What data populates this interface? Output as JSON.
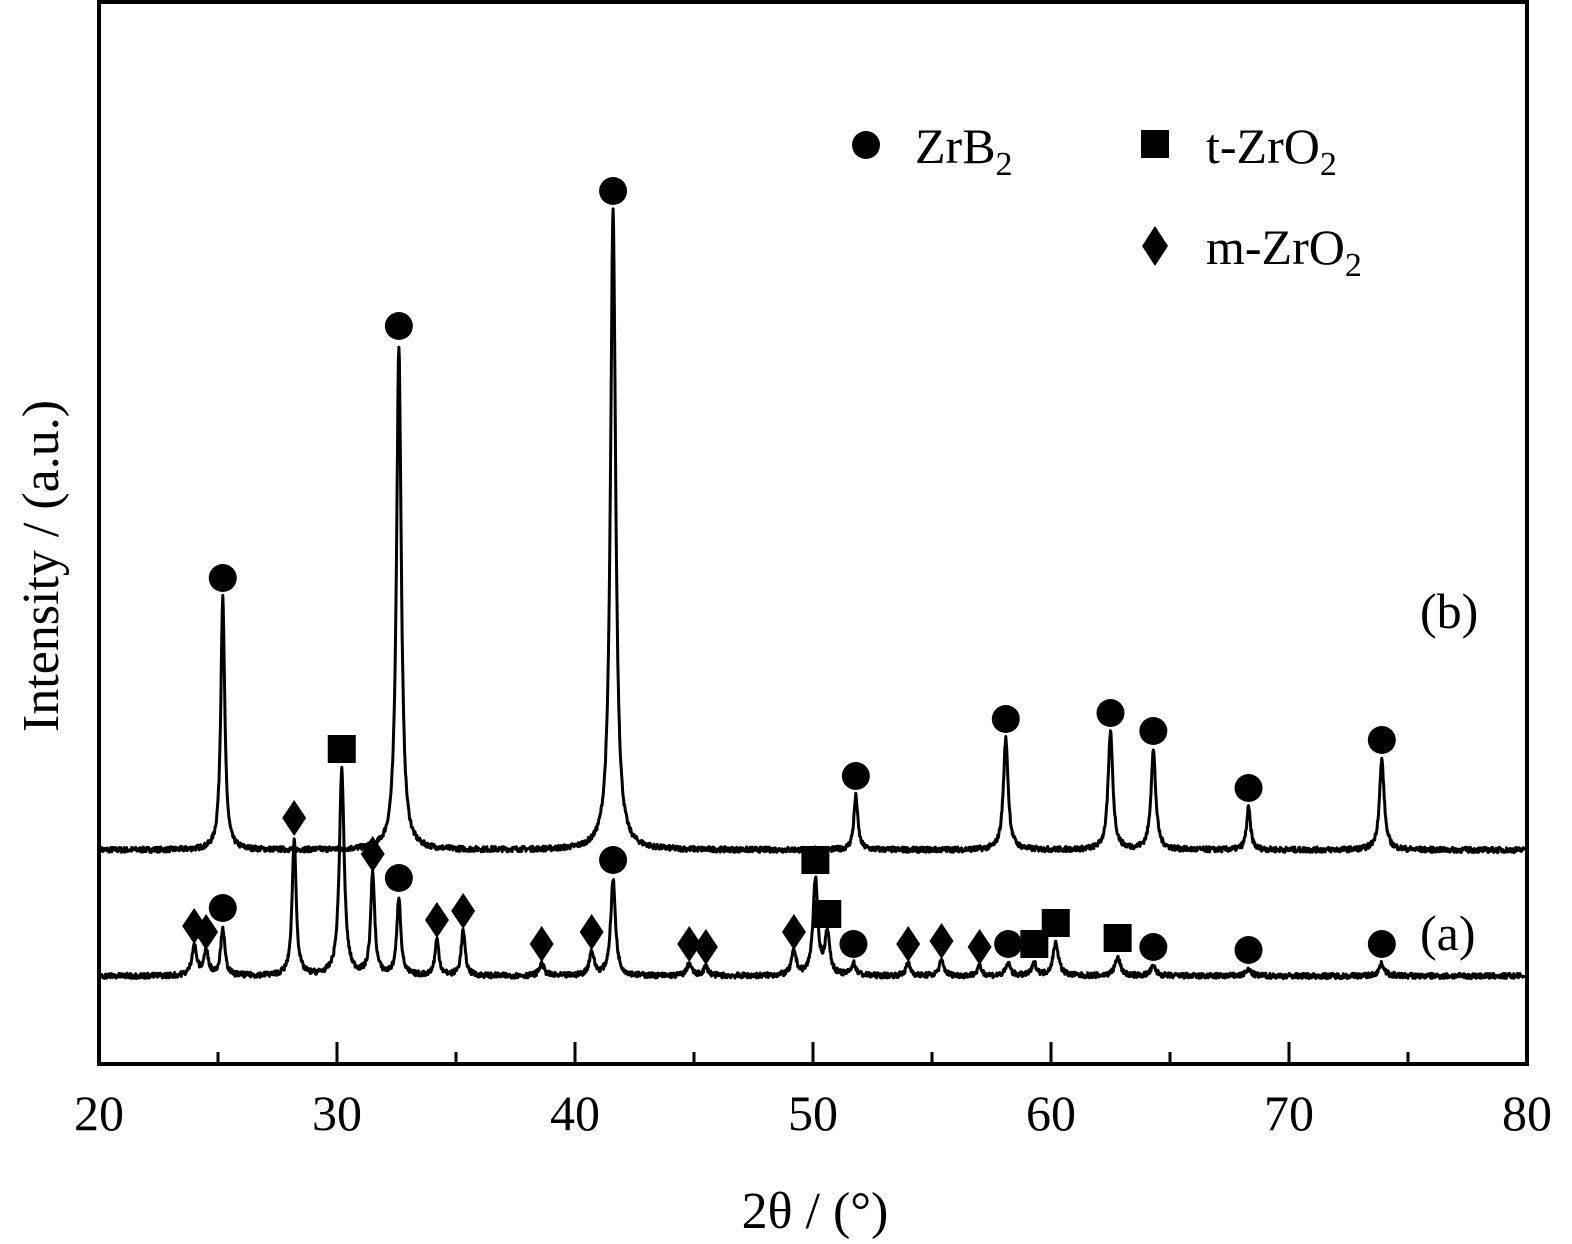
{
  "chart_data": {
    "type": "line",
    "xlabel": "2θ / (°)",
    "ylabel": "Intensity / (a.u.)",
    "xlim": [
      20,
      80
    ],
    "x_ticks": [
      20,
      30,
      40,
      50,
      60,
      70,
      80
    ],
    "x_tick_labels": [
      "20",
      "30",
      "40",
      "50",
      "60",
      "70",
      "80"
    ],
    "y_ticks_shown": false,
    "grid": false,
    "legend": {
      "placement": "top-right",
      "entries": [
        {
          "marker": "circle",
          "text": "ZrB",
          "sub": "2"
        },
        {
          "marker": "square",
          "text": "t-ZrO",
          "sub": "2"
        },
        {
          "marker": "diamond",
          "text": "m-ZrO",
          "sub": "2"
        }
      ]
    },
    "series": [
      {
        "name": "(b)",
        "baseline": 0.42,
        "color": "#000000",
        "peaks": [
          {
            "x": 25.2,
            "h": 0.84,
            "w": 0.1,
            "phase": "ZrB2"
          },
          {
            "x": 32.6,
            "h": 1.68,
            "w": 0.12,
            "phase": "ZrB2"
          },
          {
            "x": 41.6,
            "h": 2.13,
            "w": 0.13,
            "phase": "ZrB2"
          },
          {
            "x": 51.8,
            "h": 0.18,
            "w": 0.1,
            "phase": "ZrB2"
          },
          {
            "x": 58.1,
            "h": 0.37,
            "w": 0.12,
            "phase": "ZrB2"
          },
          {
            "x": 62.5,
            "h": 0.39,
            "w": 0.12,
            "phase": "ZrB2"
          },
          {
            "x": 64.3,
            "h": 0.33,
            "w": 0.12,
            "phase": "ZrB2"
          },
          {
            "x": 68.3,
            "h": 0.14,
            "w": 0.1,
            "phase": "ZrB2"
          },
          {
            "x": 73.9,
            "h": 0.3,
            "w": 0.12,
            "phase": "ZrB2"
          }
        ]
      },
      {
        "name": "(a)",
        "baseline": 0.0,
        "color": "#000000",
        "peaks": [
          {
            "x": 24.0,
            "h": 0.1,
            "w": 0.12,
            "phase": "m-ZrO2"
          },
          {
            "x": 24.5,
            "h": 0.08,
            "w": 0.12,
            "phase": "m-ZrO2"
          },
          {
            "x": 25.2,
            "h": 0.16,
            "w": 0.1,
            "phase": "ZrB2"
          },
          {
            "x": 28.2,
            "h": 0.46,
            "w": 0.1,
            "phase": "m-ZrO2"
          },
          {
            "x": 30.2,
            "h": 0.69,
            "w": 0.12,
            "phase": "t-ZrO2"
          },
          {
            "x": 31.5,
            "h": 0.34,
            "w": 0.1,
            "phase": "m-ZrO2"
          },
          {
            "x": 32.6,
            "h": 0.26,
            "w": 0.1,
            "phase": "ZrB2"
          },
          {
            "x": 34.2,
            "h": 0.12,
            "w": 0.1,
            "phase": "m-ZrO2"
          },
          {
            "x": 35.3,
            "h": 0.15,
            "w": 0.1,
            "phase": "m-ZrO2"
          },
          {
            "x": 38.6,
            "h": 0.04,
            "w": 0.12,
            "phase": "m-ZrO2"
          },
          {
            "x": 40.7,
            "h": 0.08,
            "w": 0.12,
            "phase": "m-ZrO2"
          },
          {
            "x": 41.6,
            "h": 0.32,
            "w": 0.12,
            "phase": "ZrB2"
          },
          {
            "x": 44.8,
            "h": 0.04,
            "w": 0.12,
            "phase": "m-ZrO2"
          },
          {
            "x": 45.5,
            "h": 0.03,
            "w": 0.12,
            "phase": "m-ZrO2"
          },
          {
            "x": 49.2,
            "h": 0.08,
            "w": 0.12,
            "phase": "m-ZrO2"
          },
          {
            "x": 50.1,
            "h": 0.32,
            "w": 0.12,
            "phase": "t-ZrO2"
          },
          {
            "x": 50.6,
            "h": 0.14,
            "w": 0.12,
            "phase": "t-ZrO2"
          },
          {
            "x": 51.7,
            "h": 0.04,
            "w": 0.12,
            "phase": "ZrB2"
          },
          {
            "x": 54.0,
            "h": 0.04,
            "w": 0.12,
            "phase": "m-ZrO2"
          },
          {
            "x": 55.4,
            "h": 0.05,
            "w": 0.12,
            "phase": "m-ZrO2"
          },
          {
            "x": 57.0,
            "h": 0.03,
            "w": 0.12,
            "phase": "m-ZrO2"
          },
          {
            "x": 58.2,
            "h": 0.04,
            "w": 0.12,
            "phase": "ZrB2"
          },
          {
            "x": 59.3,
            "h": 0.04,
            "w": 0.12,
            "phase": "t-ZrO2"
          },
          {
            "x": 60.2,
            "h": 0.11,
            "w": 0.14,
            "phase": "t-ZrO2"
          },
          {
            "x": 62.8,
            "h": 0.06,
            "w": 0.14,
            "phase": "t-ZrO2"
          },
          {
            "x": 64.3,
            "h": 0.03,
            "w": 0.14,
            "phase": "ZrB2"
          },
          {
            "x": 68.3,
            "h": 0.02,
            "w": 0.14,
            "phase": "ZrB2"
          },
          {
            "x": 73.9,
            "h": 0.04,
            "w": 0.14,
            "phase": "ZrB2"
          }
        ]
      }
    ]
  }
}
